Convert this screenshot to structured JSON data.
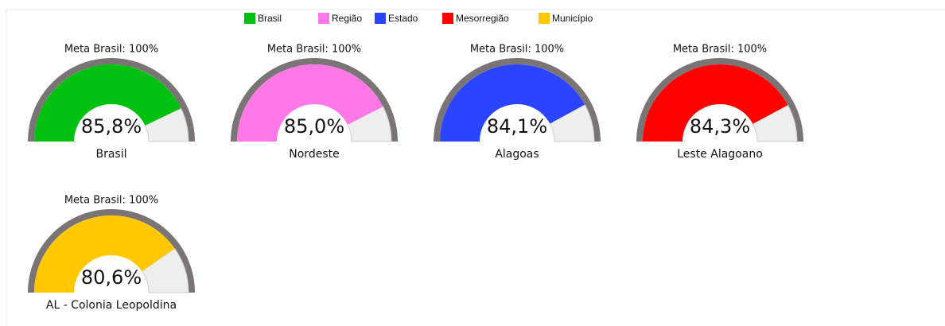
{
  "legend": [
    {
      "name": "Brasil",
      "color": "#00c010"
    },
    {
      "name": "Região",
      "color": "#ff78e8"
    },
    {
      "name": "Estado",
      "color": "#2a44ff"
    },
    {
      "name": "Mesorregião",
      "color": "#ff0000"
    },
    {
      "name": "Município",
      "color": "#ffc800"
    }
  ],
  "chart_data": [
    {
      "type": "gauge",
      "title": "Meta Brasil: 100%",
      "categories": [
        "Brasil"
      ],
      "values": [
        85.8
      ],
      "value_labels": [
        "85,8%"
      ],
      "color": "#00c010",
      "ylim": [
        0,
        100
      ]
    },
    {
      "type": "gauge",
      "title": "Meta Brasil: 100%",
      "categories": [
        "Nordeste"
      ],
      "values": [
        85.0
      ],
      "value_labels": [
        "85,0%"
      ],
      "color": "#ff78e8",
      "ylim": [
        0,
        100
      ]
    },
    {
      "type": "gauge",
      "title": "Meta Brasil: 100%",
      "categories": [
        "Alagoas"
      ],
      "values": [
        84.1
      ],
      "value_labels": [
        "84,1%"
      ],
      "color": "#2a44ff",
      "ylim": [
        0,
        100
      ]
    },
    {
      "type": "gauge",
      "title": "Meta Brasil: 100%",
      "categories": [
        "Leste Alagoano"
      ],
      "values": [
        84.3
      ],
      "value_labels": [
        "84,3%"
      ],
      "color": "#ff0000",
      "ylim": [
        0,
        100
      ]
    },
    {
      "type": "gauge",
      "title": "Meta Brasil: 100%",
      "categories": [
        "AL - Colonia Leopoldina"
      ],
      "values": [
        80.6
      ],
      "value_labels": [
        "80,6%"
      ],
      "color": "#ffc800",
      "ylim": [
        0,
        100
      ]
    }
  ]
}
